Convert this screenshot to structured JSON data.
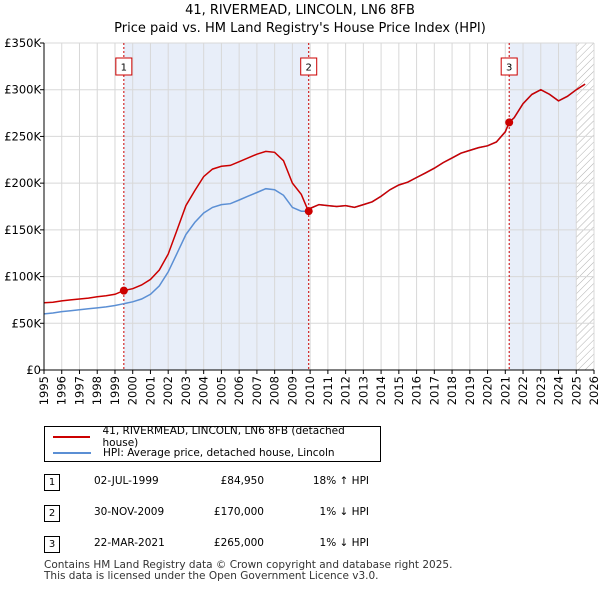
{
  "chart_data": {
    "type": "line",
    "title": "41, RIVERMEAD, LINCOLN, LN6 8FB",
    "subtitle": "Price paid vs. HM Land Registry's House Price Index (HPI)",
    "xlim": [
      1995,
      2026
    ],
    "ylim": [
      0,
      350000
    ],
    "x_ticks": [
      "1995",
      "1996",
      "1997",
      "1998",
      "1999",
      "2000",
      "2001",
      "2002",
      "2003",
      "2004",
      "2005",
      "2006",
      "2007",
      "2008",
      "2009",
      "2010",
      "2011",
      "2012",
      "2013",
      "2014",
      "2015",
      "2016",
      "2017",
      "2018",
      "2019",
      "2020",
      "2021",
      "2022",
      "2023",
      "2024",
      "2025",
      "2026"
    ],
    "y_ticks": [
      {
        "value": 0,
        "label": "£0"
      },
      {
        "value": 50000,
        "label": "£50K"
      },
      {
        "value": 100000,
        "label": "£100K"
      },
      {
        "value": 150000,
        "label": "£150K"
      },
      {
        "value": 200000,
        "label": "£200K"
      },
      {
        "value": 250000,
        "label": "£250K"
      },
      {
        "value": 300000,
        "label": "£300K"
      },
      {
        "value": 350000,
        "label": "£350K"
      }
    ],
    "colors": {
      "property": "#cc0000",
      "hpi": "#5b8fd4",
      "shade": "#e8eef9",
      "grid": "#d8d8d8"
    },
    "series": [
      {
        "name": "41, RIVERMEAD, LINCOLN, LN6 8FB (detached house)",
        "x": [
          1995.0,
          1995.5,
          1996.0,
          1996.5,
          1997.0,
          1997.5,
          1998.0,
          1998.5,
          1999.0,
          1999.5,
          2000.0,
          2000.5,
          2001.0,
          2001.5,
          2002.0,
          2002.5,
          2003.0,
          2003.5,
          2004.0,
          2004.5,
          2005.0,
          2005.5,
          2006.0,
          2006.5,
          2007.0,
          2007.5,
          2008.0,
          2008.5,
          2009.0,
          2009.5,
          2009.9,
          2010.0,
          2010.5,
          2011.0,
          2011.5,
          2012.0,
          2012.5,
          2013.0,
          2013.5,
          2014.0,
          2014.5,
          2015.0,
          2015.5,
          2016.0,
          2016.5,
          2017.0,
          2017.5,
          2018.0,
          2018.5,
          2019.0,
          2019.5,
          2020.0,
          2020.5,
          2021.0,
          2021.22,
          2021.5,
          2022.0,
          2022.5,
          2023.0,
          2023.5,
          2024.0,
          2024.5,
          2025.0,
          2025.5
        ],
        "values": [
          72000,
          72500,
          74000,
          75000,
          76000,
          77000,
          78500,
          79500,
          81000,
          84950,
          87000,
          91000,
          97000,
          107000,
          124000,
          150000,
          176000,
          192000,
          207000,
          215000,
          218000,
          219000,
          223000,
          227000,
          231000,
          234000,
          233000,
          224000,
          200000,
          188000,
          170000,
          173000,
          177000,
          176000,
          175000,
          176000,
          174000,
          177000,
          180000,
          186000,
          193000,
          198000,
          201000,
          206000,
          211000,
          216000,
          222000,
          227000,
          232000,
          235000,
          238000,
          240000,
          244000,
          255000,
          265000,
          270000,
          285000,
          295000,
          300000,
          295000,
          288000,
          293000,
          300000,
          306000
        ]
      },
      {
        "name": "HPI: Average price, detached house, Lincoln",
        "x": [
          1995.0,
          1995.5,
          1996.0,
          1996.5,
          1997.0,
          1997.5,
          1998.0,
          1998.5,
          1999.0,
          1999.5,
          2000.0,
          2000.5,
          2001.0,
          2001.5,
          2002.0,
          2002.5,
          2003.0,
          2003.5,
          2004.0,
          2004.5,
          2005.0,
          2005.5,
          2006.0,
          2006.5,
          2007.0,
          2007.5,
          2008.0,
          2008.5,
          2009.0,
          2009.5,
          2009.9,
          2010.0,
          2010.5,
          2011.0,
          2011.5,
          2012.0,
          2012.5,
          2013.0,
          2013.5,
          2014.0,
          2014.5,
          2015.0,
          2015.5,
          2016.0,
          2016.5,
          2017.0,
          2017.5,
          2018.0,
          2018.5,
          2019.0,
          2019.5,
          2020.0,
          2020.5,
          2021.0,
          2021.22,
          2021.5,
          2022.0,
          2022.5,
          2023.0,
          2023.5,
          2024.0,
          2024.5,
          2025.0,
          2025.5
        ],
        "values": [
          60000,
          61000,
          62500,
          63500,
          64500,
          65500,
          66500,
          67500,
          69000,
          71000,
          73000,
          76000,
          81000,
          90000,
          105000,
          125000,
          145000,
          158000,
          168000,
          174000,
          177000,
          178000,
          182000,
          186000,
          190000,
          194000,
          193000,
          187000,
          174000,
          170000,
          170000,
          173000,
          177000,
          176000,
          175000,
          176000,
          174000,
          177000,
          180000,
          186000,
          193000,
          198000,
          201000,
          206000,
          211000,
          216000,
          222000,
          227000,
          232000,
          235000,
          238000,
          240000,
          244000,
          255000,
          265000,
          270000,
          285000,
          295000,
          300000,
          295000,
          288000,
          293000,
          300000,
          306000
        ]
      }
    ],
    "transactions": [
      {
        "n": "1",
        "x": 1999.5,
        "value": 84950
      },
      {
        "n": "2",
        "x": 2009.92,
        "value": 170000
      },
      {
        "n": "3",
        "x": 2021.22,
        "value": 265000
      }
    ],
    "shaded_ranges": [
      [
        1999.5,
        2009.92
      ],
      [
        2021.22,
        2025.0
      ]
    ],
    "hatch_from": 2025.0
  },
  "legend": {
    "property_label": "41, RIVERMEAD, LINCOLN, LN6 8FB (detached house)",
    "hpi_label": "HPI: Average price, detached house, Lincoln"
  },
  "table": [
    {
      "n": "1",
      "date": "02-JUL-1999",
      "price": "£84,950",
      "hpi": "18% ↑ HPI"
    },
    {
      "n": "2",
      "date": "30-NOV-2009",
      "price": "£170,000",
      "hpi": "1% ↓ HPI"
    },
    {
      "n": "3",
      "date": "22-MAR-2021",
      "price": "£265,000",
      "hpi": "1% ↓ HPI"
    }
  ],
  "footer": {
    "line1": "Contains HM Land Registry data © Crown copyright and database right 2025.",
    "line2": "This data is licensed under the Open Government Licence v3.0."
  }
}
